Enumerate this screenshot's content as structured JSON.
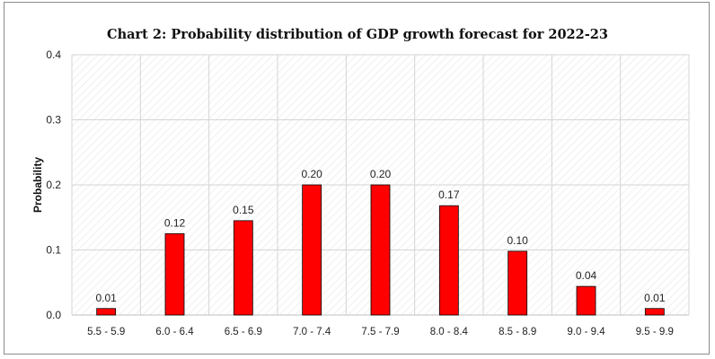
{
  "chart_data": {
    "type": "bar",
    "title": "Chart 2: Probability distribution of  GDP growth forecast for 2022-23",
    "xlabel": "",
    "ylabel": "Probability",
    "categories": [
      "5.5 - 5.9",
      "6.0 - 6.4",
      "6.5 - 6.9",
      "7.0 - 7.4",
      "7.5 - 7.9",
      "8.0 - 8.4",
      "8.5 - 8.9",
      "9.0 - 9.4",
      "9.5 - 9.9"
    ],
    "values": [
      0.01,
      0.125,
      0.145,
      0.2,
      0.2,
      0.168,
      0.098,
      0.044,
      0.01
    ],
    "data_labels": [
      "0.01",
      "0.12",
      "0.15",
      "0.20",
      "0.20",
      "0.17",
      "0.10",
      "0.04",
      "0.01"
    ],
    "ylim": [
      0,
      0.4
    ],
    "yticks": [
      0.0,
      0.1,
      0.2,
      0.3,
      0.4
    ],
    "ytick_labels": [
      "0.0",
      "0.1",
      "0.2",
      "0.3",
      "0.4"
    ],
    "grid": true,
    "legend": "none",
    "colors": {
      "bar_fill": "#ff0000",
      "bar_stroke": "#000000",
      "grid": "#d4d4d4",
      "hatch": "#e2e2e2"
    }
  }
}
